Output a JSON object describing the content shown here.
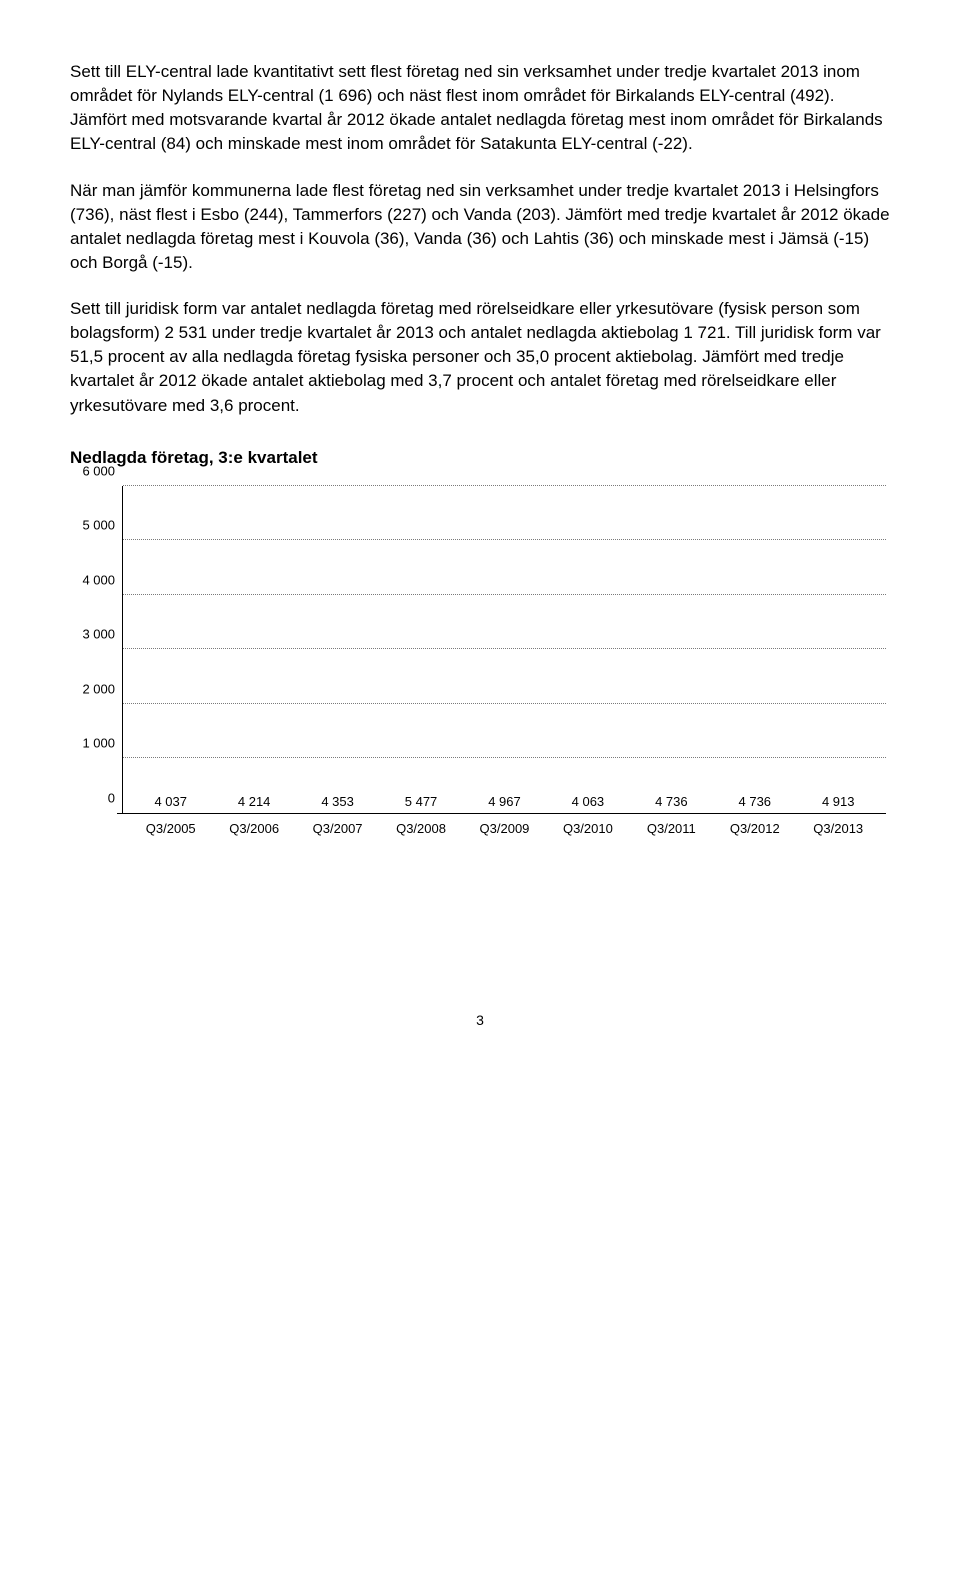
{
  "paragraphs": [
    "Sett till ELY-central lade kvantitativt sett flest företag ned sin verksamhet under tredje kvartalet 2013 inom området för Nylands ELY-central (1 696) och näst flest inom området för Birkalands ELY-central (492). Jämfört med motsvarande kvartal år 2012 ökade antalet nedlagda företag mest inom området för Birkalands ELY-central (84) och minskade mest inom området för Satakunta ELY-central (-22).",
    "När man jämför kommunerna lade flest företag ned sin verksamhet under tredje kvartalet 2013 i Helsingfors (736), näst flest i Esbo (244), Tammerfors (227) och Vanda (203). Jämfört med tredje kvartalet år 2012 ökade antalet nedlagda företag mest i Kouvola (36), Vanda (36) och Lahtis (36) och minskade mest i Jämsä (-15) och Borgå (-15).",
    "Sett till juridisk form var antalet nedlagda företag med rörelseidkare eller yrkesutövare (fysisk person som bolagsform) 2 531 under tredje kvartalet år 2013 och antalet nedlagda aktiebolag 1 721. Till juridisk form var 51,5 procent av alla nedlagda företag fysiska personer och 35,0 procent aktiebolag. Jämfört med tredje kvartalet år 2012 ökade antalet aktiebolag med 3,7 procent och antalet företag med rörelseidkare eller yrkesutövare med 3,6 procent."
  ],
  "chart": {
    "title": "Nedlagda företag, 3:e kvartalet",
    "type": "bar",
    "categories": [
      "Q3/2005",
      "Q3/2006",
      "Q3/2007",
      "Q3/2008",
      "Q3/2009",
      "Q3/2010",
      "Q3/2011",
      "Q3/2012",
      "Q3/2013"
    ],
    "values": [
      4037,
      4214,
      4353,
      5477,
      4967,
      4063,
      4736,
      4736,
      4913
    ],
    "value_labels": [
      "4 037",
      "4 214",
      "4 353",
      "5 477",
      "4 967",
      "4 063",
      "4 736",
      "4 736",
      "4 913"
    ],
    "bar_color": "#00a7e1",
    "ylim": [
      0,
      6000
    ],
    "yticks": [
      0,
      1000,
      2000,
      3000,
      4000,
      5000,
      6000
    ],
    "ytick_labels": [
      "0",
      "1 000",
      "2 000",
      "3 000",
      "4 000",
      "5 000",
      "6 000"
    ],
    "grid_color": "#7a7a7a",
    "label_fontsize": 13,
    "background_color": "#ffffff"
  },
  "page_number": "3"
}
